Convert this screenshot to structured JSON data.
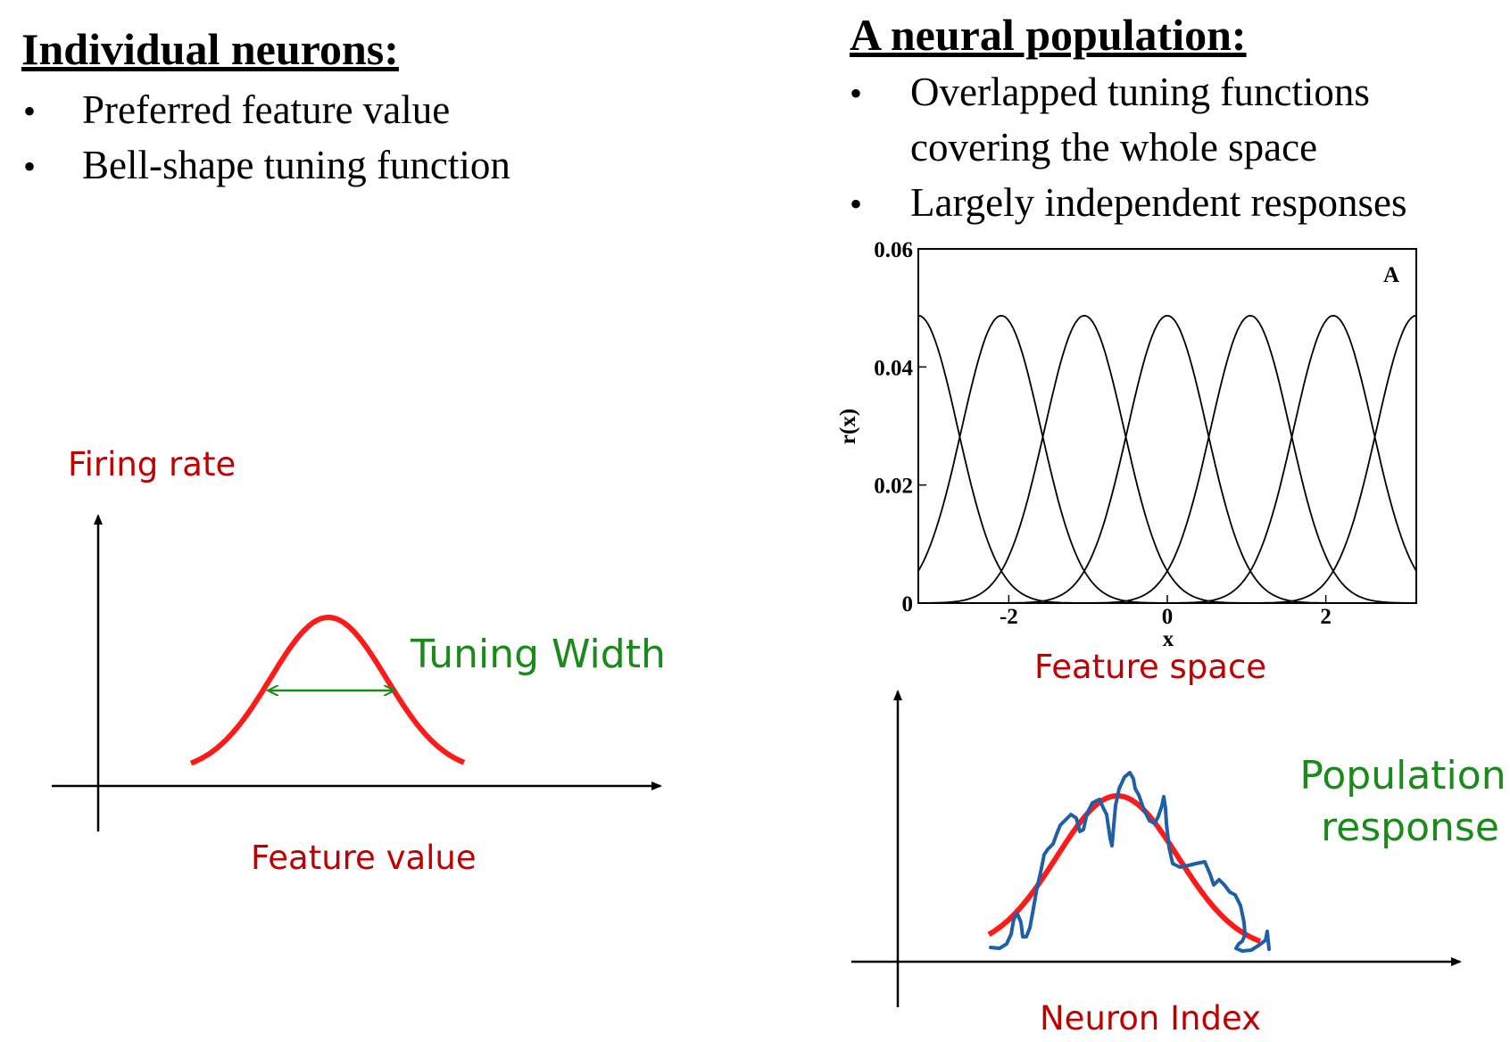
{
  "left": {
    "heading": "Individual neurons:",
    "bullets": [
      "Preferred feature value",
      "Bell-shape tuning function"
    ],
    "diagram": {
      "y_label": "Firing rate",
      "x_label": "Feature value",
      "width_label": "Tuning Width"
    }
  },
  "right": {
    "heading": "A neural population:",
    "bullets": [
      {
        "lines": [
          "Overlapped tuning functions",
          "covering the whole space"
        ]
      },
      {
        "lines": [
          "Largely independent responses"
        ]
      }
    ],
    "feature_label": "Feature space",
    "population": {
      "x_label": "Neuron Index",
      "label_lines": [
        "Population",
        "response"
      ]
    }
  },
  "colors": {
    "red_curve": "#ff1a1a",
    "red_text": "#c00000",
    "green": "#1a8a1a",
    "blue_noisy": "#1f5fa6"
  },
  "chart_data": {
    "type": "line",
    "panel_label": "A",
    "xlabel": "x",
    "ylabel": "r(x)",
    "xlim": [
      -3.14159,
      3.14159
    ],
    "ylim": [
      0,
      0.06
    ],
    "xticks": [
      -2,
      0,
      2
    ],
    "xtick_labels": [
      "-2",
      "0",
      "2"
    ],
    "yticks": [
      0,
      0.02,
      0.04,
      0.06
    ],
    "ytick_labels": [
      "0",
      "0.02",
      "0.04",
      "0.06"
    ],
    "peak": 0.0487,
    "sigma": 0.5,
    "centers": [
      -3.14159,
      -2.0944,
      -1.0472,
      0,
      1.0472,
      2.0944,
      3.14159
    ],
    "series": [
      {
        "center": -3.14159
      },
      {
        "center": -2.0944
      },
      {
        "center": -1.0472
      },
      {
        "center": 0
      },
      {
        "center": 1.0472
      },
      {
        "center": 2.0944
      },
      {
        "center": 3.14159
      }
    ]
  }
}
